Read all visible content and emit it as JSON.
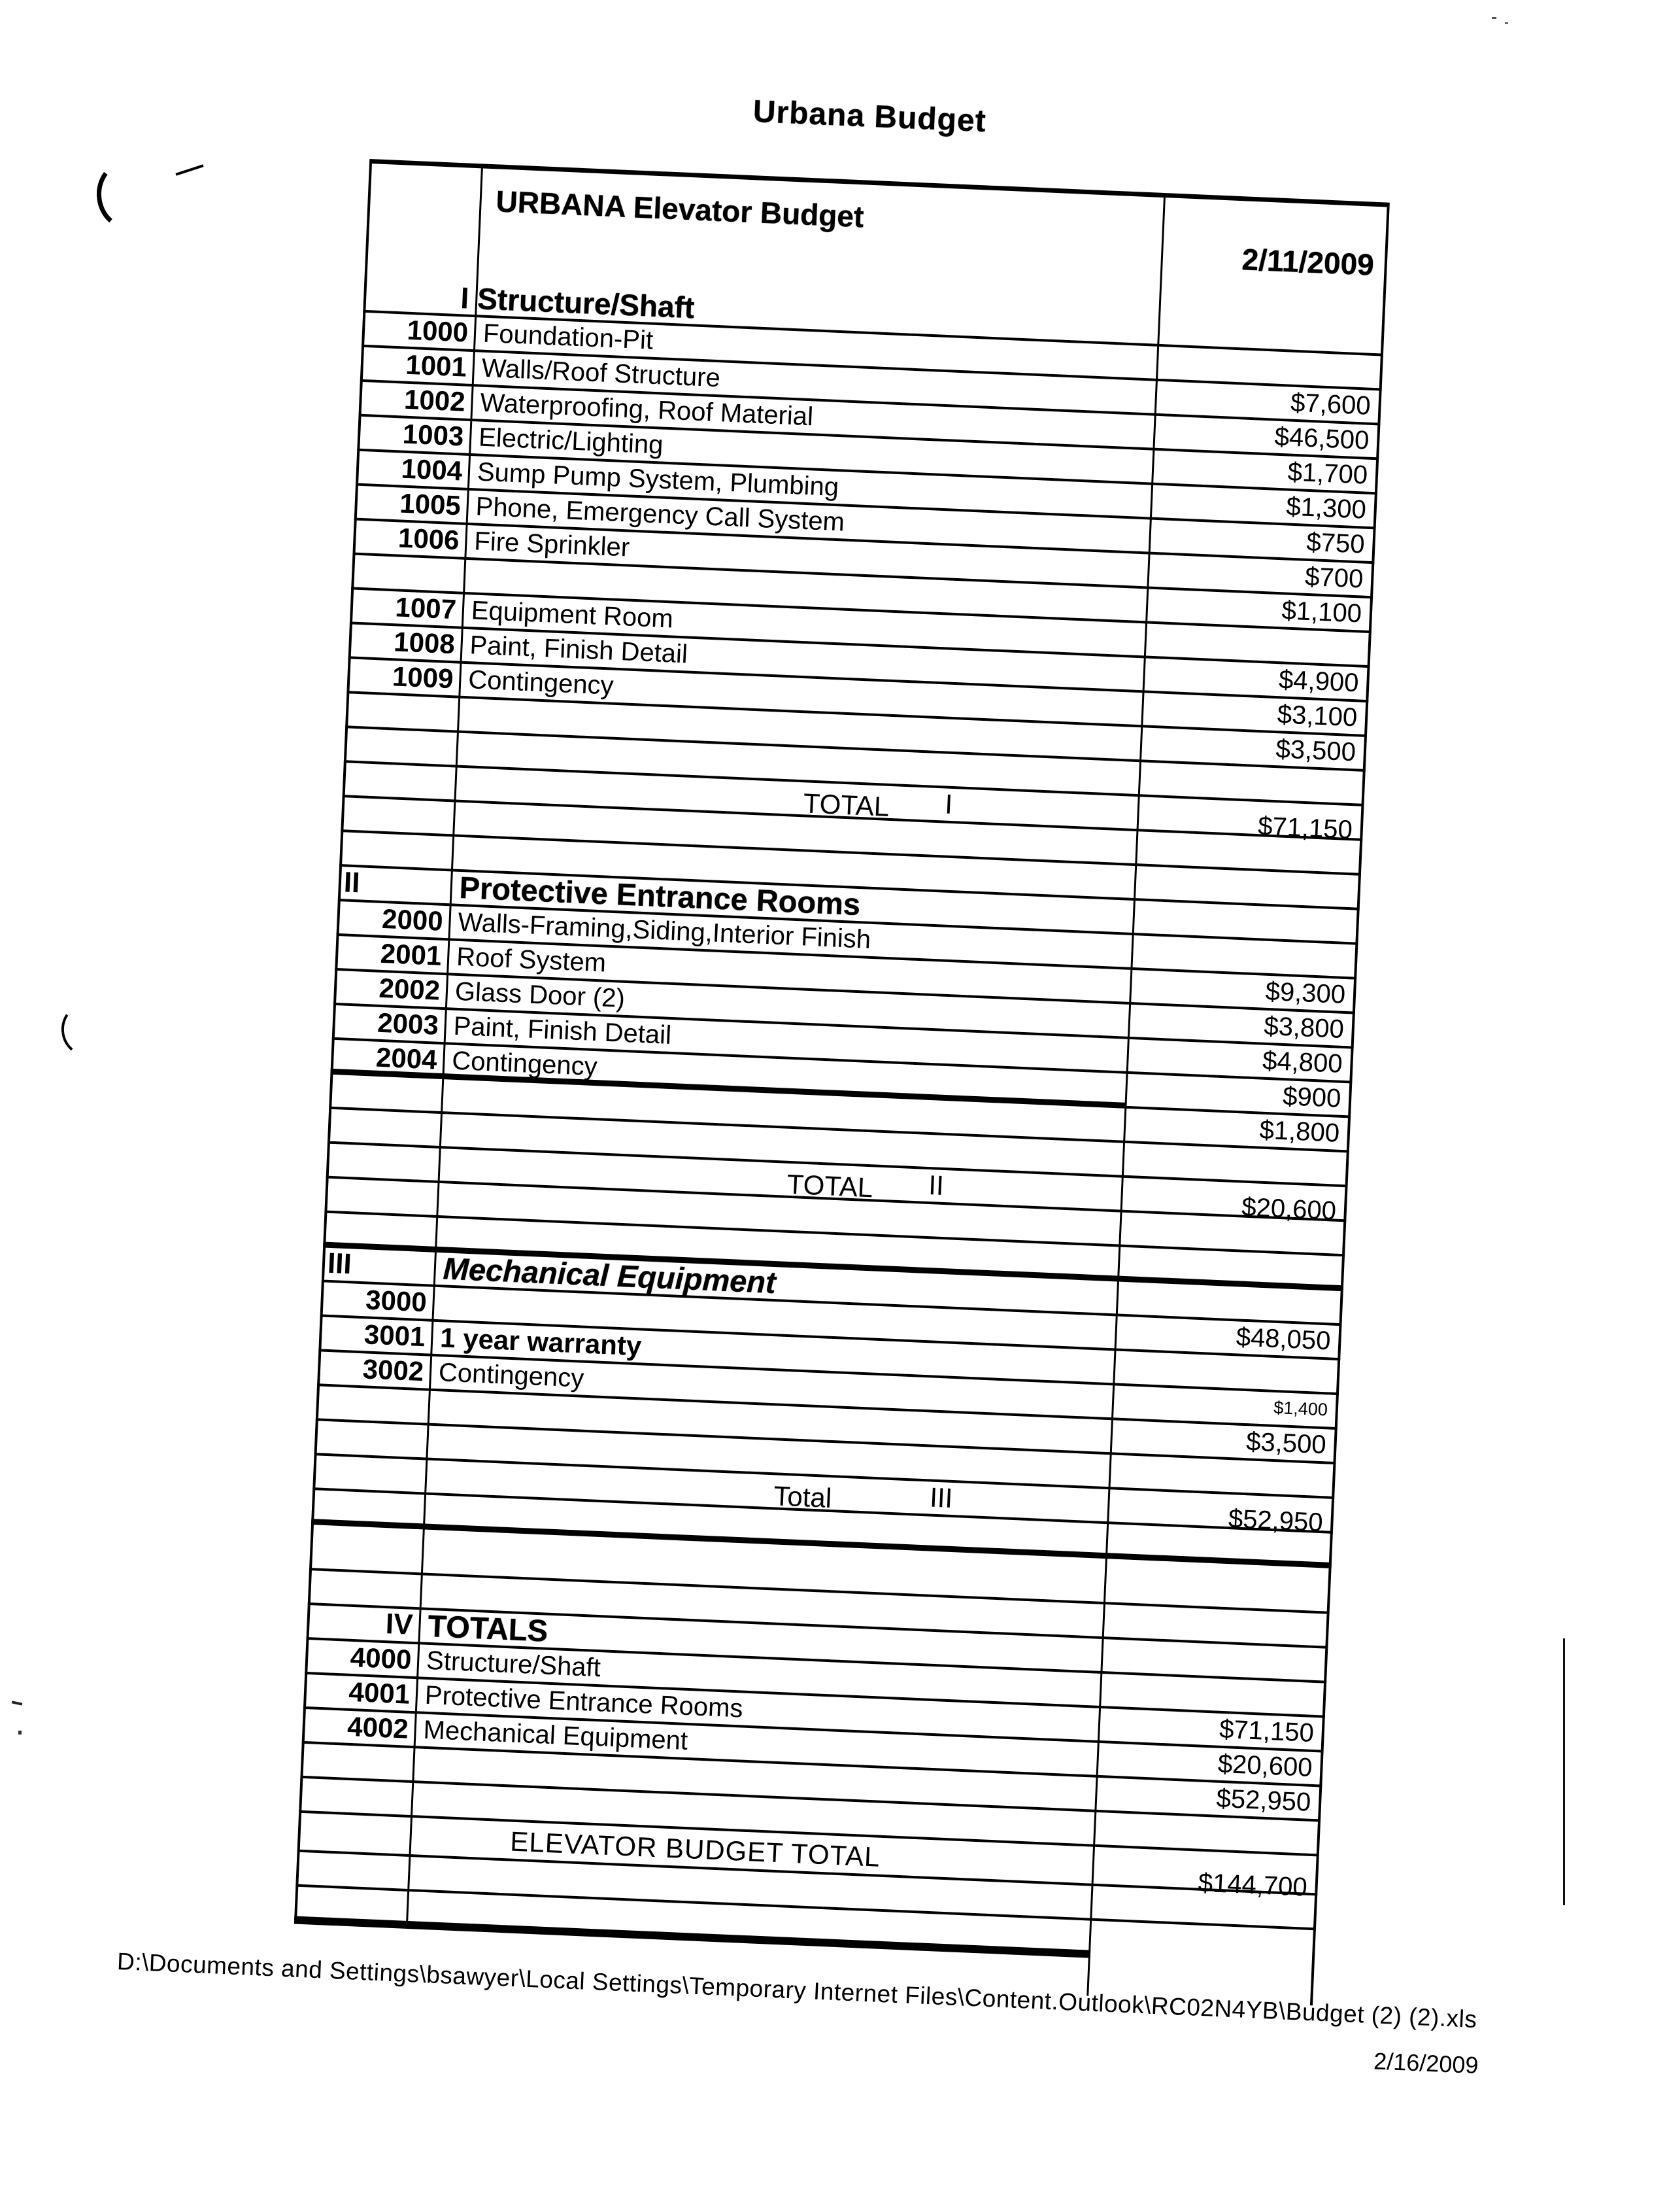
{
  "page_title": "Urbana Budget",
  "colors": {
    "ink": "#000000",
    "paper": "#ffffff"
  },
  "table": {
    "header": {
      "title": "URBANA Elevator Budget",
      "date": "2/11/2009"
    },
    "section1": {
      "numeral": "I",
      "name": "Structure/Shaft"
    },
    "rows": [
      {
        "code": "1000",
        "label": "Foundation-Pit"
      },
      {
        "code": "1001",
        "label": "Walls/Roof Structure",
        "amount": "$7,600"
      },
      {
        "code": "1002",
        "label": "Waterproofing, Roof Material",
        "amount": "$46,500"
      },
      {
        "code": "1003",
        "label": "Electric/Lighting",
        "amount": "$1,700"
      },
      {
        "code": "1004",
        "label": "Sump Pump System, Plumbing",
        "amount": "$1,300"
      },
      {
        "code": "1005",
        "label": "Phone, Emergency Call System",
        "amount": "$750"
      },
      {
        "code": "1006",
        "label": "Fire Sprinkler",
        "amount": "$700"
      },
      {
        "amount": "$1,100"
      },
      {
        "code": "1007",
        "label": "Equipment Room"
      },
      {
        "code": "1008",
        "label": "Paint, Finish Detail",
        "amount": "$4,900"
      },
      {
        "code": "1009",
        "label": "Contingency",
        "amount": "$3,100"
      },
      {
        "amount": "$3,500"
      },
      {},
      {
        "total": "TOTAL",
        "numeral": "I",
        "amount": "$71,150"
      },
      {},
      {},
      {
        "sec": "II",
        "sec_align": "left",
        "header": "Protective Entrance Rooms"
      },
      {
        "code": "2000",
        "label": "Walls-Framing,Siding,Interior Finish"
      },
      {
        "code": "2001",
        "label": "Roof System",
        "amount": "$9,300"
      },
      {
        "code": "2002",
        "label": "Glass Door (2)",
        "amount": "$3,800"
      },
      {
        "code": "2003",
        "label": "Paint, Finish Detail",
        "amount": "$4,800"
      },
      {
        "code": "2004",
        "label": "Contingency",
        "amount": "$900",
        "rule_below": "thick-left"
      },
      {
        "amount": "$1,800"
      },
      {},
      {
        "total": "TOTAL",
        "numeral": "II",
        "amount": "$20,600"
      },
      {},
      {
        "rule_below": "thick"
      },
      {
        "sec": "III",
        "sec_align": "left",
        "header": "Mechanical Equipment",
        "italic": true
      },
      {
        "code": "3000",
        "amount": "$48,050"
      },
      {
        "code": "3001",
        "label": "1 year warranty",
        "bold": true
      },
      {
        "code": "3002",
        "label": "Contingency",
        "amount": "$1,400",
        "small_amount": true
      },
      {
        "amount": "$3,500"
      },
      {},
      {
        "total": "Total",
        "numeral": "III",
        "amount": "$52,950"
      },
      {
        "rule_below": "thick"
      },
      {
        "h": 70
      },
      {},
      {
        "sec": "IV",
        "sec_align": "right",
        "header": "TOTALS"
      },
      {
        "code": "4000",
        "label": "Structure/Shaft"
      },
      {
        "code": "4001",
        "label": "Protective Entrance Rooms",
        "amount": "$71,150"
      },
      {
        "code": "4002",
        "label": "Mechanical Equipment",
        "amount": "$20,600"
      },
      {
        "amount": "$52,950"
      },
      {},
      {
        "big": "ELEVATOR BUDGET TOTAL",
        "amount": "$144,700",
        "h": 60
      },
      {},
      {
        "rule_below": "heavy-left"
      }
    ]
  },
  "footer": {
    "path": "D:\\Documents and Settings\\bsawyer\\Local Settings\\Temporary Internet Files\\Content.Outlook\\RC02N4YB\\Budget (2) (2).xls",
    "date": "2/16/2009"
  }
}
